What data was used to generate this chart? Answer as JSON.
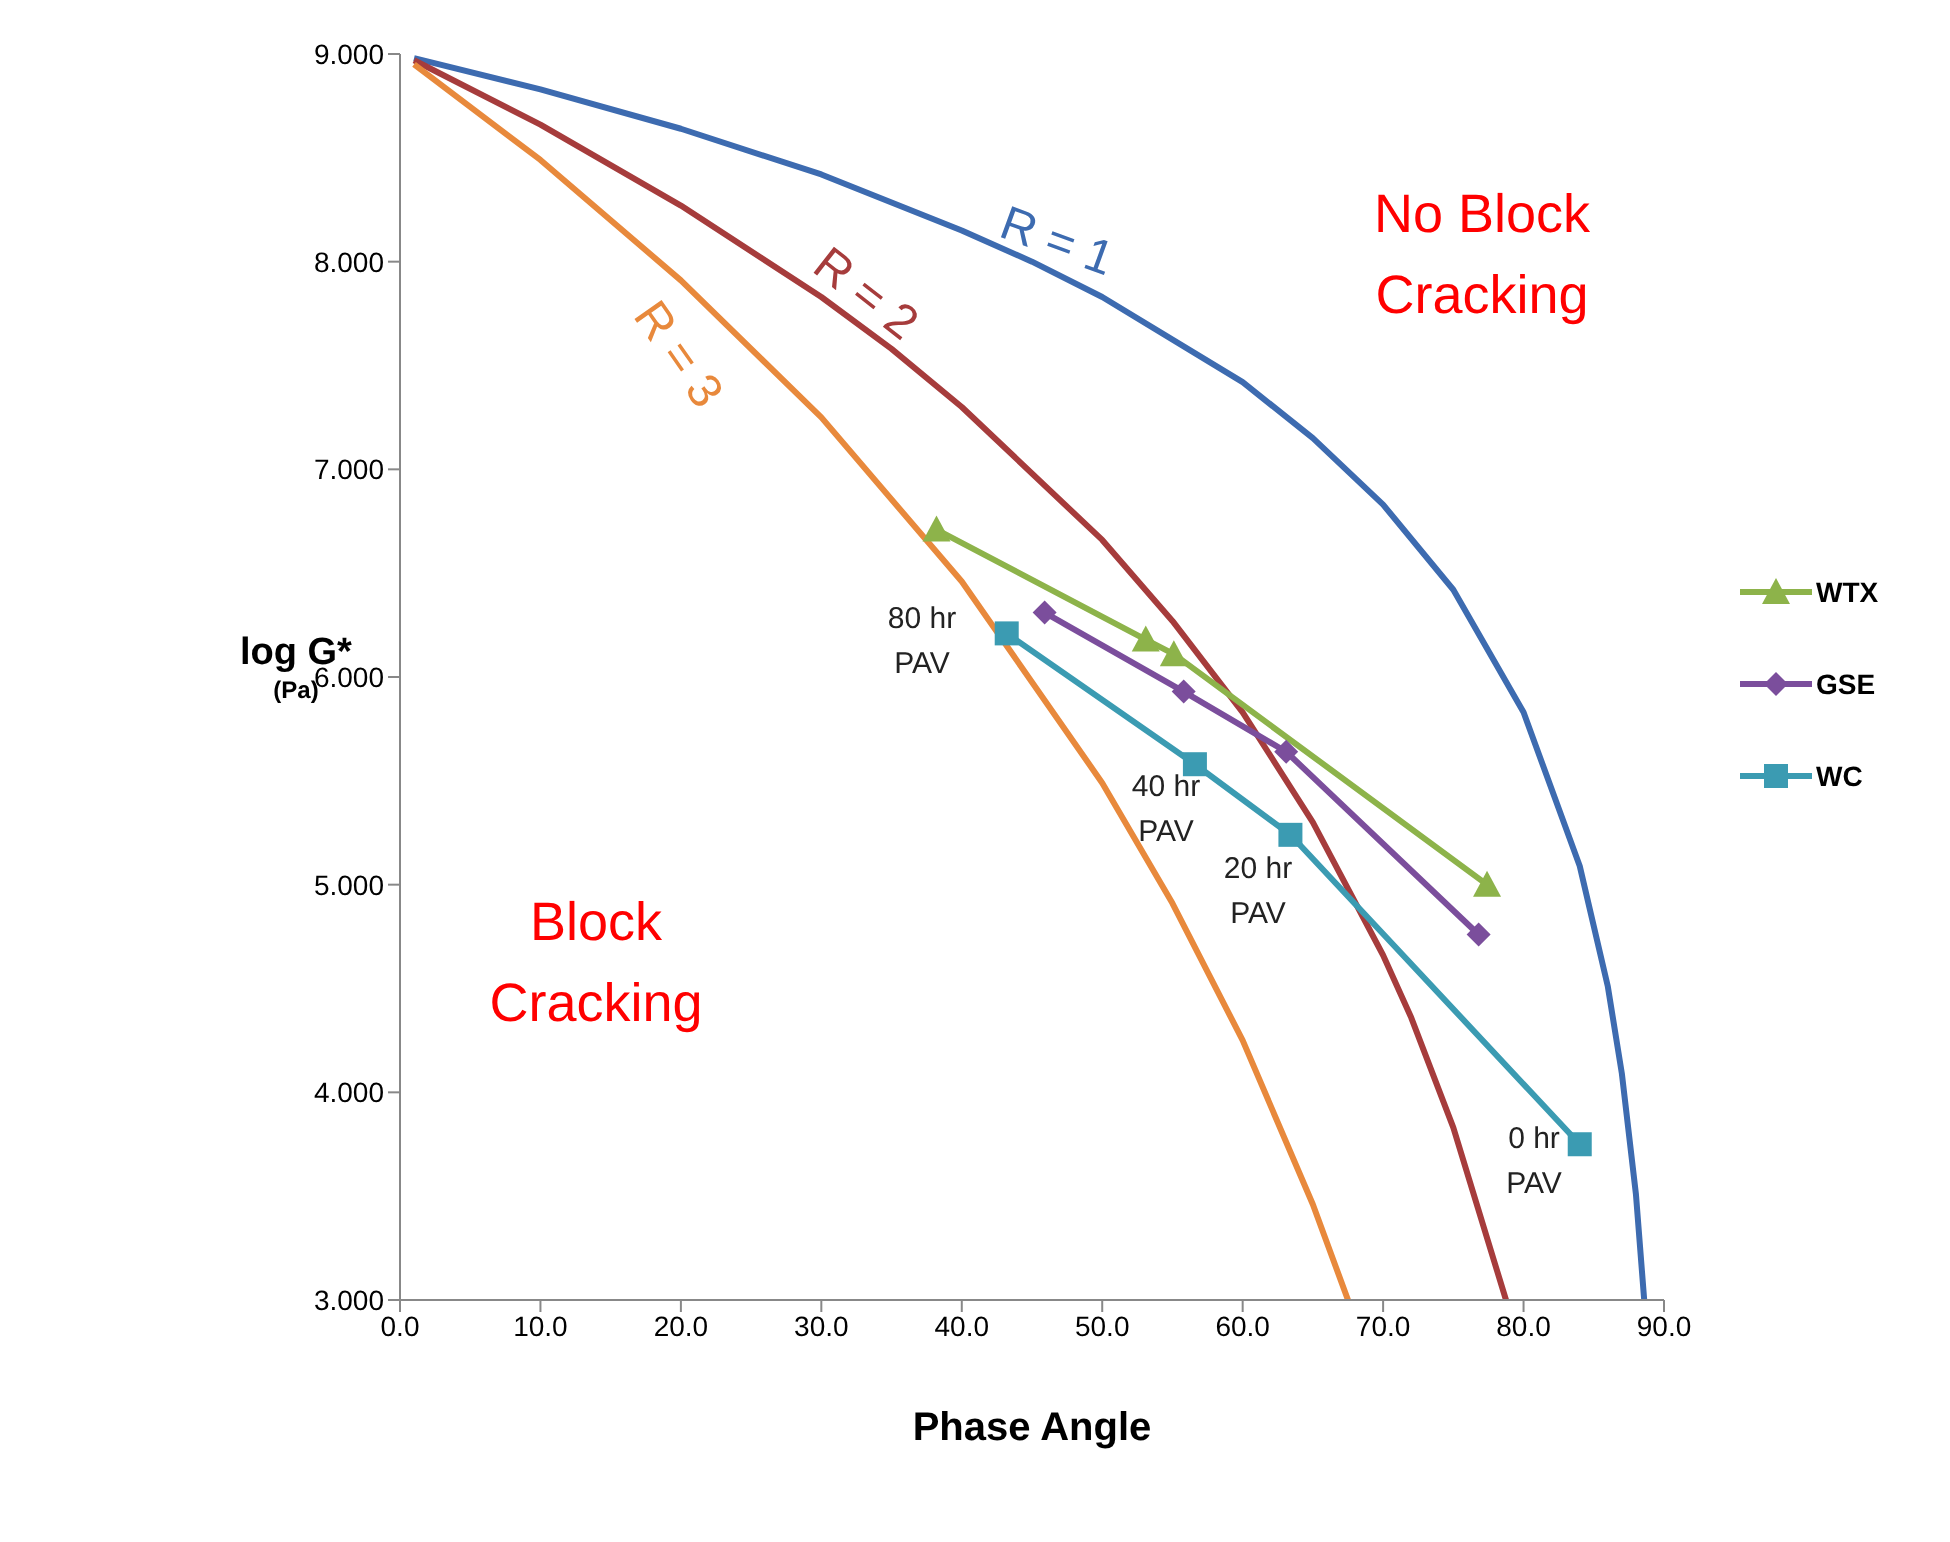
{
  "chart_data": {
    "type": "line",
    "xlabel": "Phase Angle",
    "ylabel": "log G*\n(Pa)",
    "xlim": [
      0,
      90
    ],
    "xticks": [
      {
        "value": 0,
        "label": "0.0"
      },
      {
        "value": 10,
        "label": "10.0"
      },
      {
        "value": 20,
        "label": "20.0"
      },
      {
        "value": 30,
        "label": "30.0"
      },
      {
        "value": 40,
        "label": "40.0"
      },
      {
        "value": 50,
        "label": "50.0"
      },
      {
        "value": 60,
        "label": "60.0"
      },
      {
        "value": 70,
        "label": "70.0"
      },
      {
        "value": 80,
        "label": "80.0"
      },
      {
        "value": 90,
        "label": "90.0"
      }
    ],
    "ylim": [
      3,
      9
    ],
    "yticks": [
      {
        "value": 3,
        "label": "3.000"
      },
      {
        "value": 4,
        "label": "4.000"
      },
      {
        "value": 5,
        "label": "5.000"
      },
      {
        "value": 6,
        "label": "6.000"
      },
      {
        "value": 7,
        "label": "7.000"
      },
      {
        "value": 8,
        "label": "8.000"
      },
      {
        "value": 9,
        "label": "9.000"
      }
    ],
    "grid": false,
    "legend": "right",
    "series": [
      {
        "name": "R = 1",
        "color": "#3d6bb0",
        "marker": "none",
        "x": [
          1,
          10,
          20,
          30,
          40,
          45,
          50,
          60,
          65,
          70,
          75,
          80,
          84,
          86,
          87,
          88,
          88.59
        ],
        "values": [
          8.98,
          8.83,
          8.64,
          8.42,
          8.15,
          8.0,
          7.83,
          7.42,
          7.15,
          6.83,
          6.42,
          5.83,
          5.09,
          4.51,
          4.09,
          3.51,
          3.0
        ]
      },
      {
        "name": "R = 2",
        "color": "#a63c3c",
        "marker": "none",
        "x": [
          1,
          10,
          20,
          30,
          35,
          40,
          50,
          55,
          60,
          65,
          70,
          72,
          75,
          78.75
        ],
        "values": [
          8.97,
          8.66,
          8.27,
          7.83,
          7.58,
          7.3,
          6.66,
          6.27,
          5.83,
          5.3,
          4.66,
          4.36,
          3.83,
          3.0
        ]
      },
      {
        "name": "R = 3",
        "color": "#e8893c",
        "marker": "none",
        "x": [
          1,
          10,
          20,
          30,
          40,
          50,
          55,
          60,
          65,
          67.5
        ],
        "values": [
          8.95,
          8.49,
          7.91,
          7.25,
          6.46,
          5.49,
          4.91,
          4.25,
          3.46,
          3.0
        ]
      },
      {
        "name": "WTX",
        "color": "#8db34a",
        "marker": "triangle",
        "x": [
          38.2,
          53.1,
          55.1,
          77.4
        ],
        "values": [
          6.71,
          6.18,
          6.11,
          5.0
        ]
      },
      {
        "name": "GSE",
        "color": "#7b4e9c",
        "marker": "diamond",
        "x": [
          45.9,
          55.8,
          63.1,
          76.8
        ],
        "values": [
          6.31,
          5.93,
          5.64,
          4.76
        ]
      },
      {
        "name": "WC",
        "color": "#3b9bb2",
        "marker": "square",
        "x": [
          43.2,
          56.6,
          63.4,
          84.0
        ],
        "values": [
          6.21,
          5.58,
          5.24,
          3.75
        ]
      }
    ],
    "annotations": [
      "No Block Cracking",
      "Block Cracking",
      "80 hr PAV",
      "40 hr PAV",
      "20 hr PAV",
      "0 hr PAV"
    ]
  }
}
